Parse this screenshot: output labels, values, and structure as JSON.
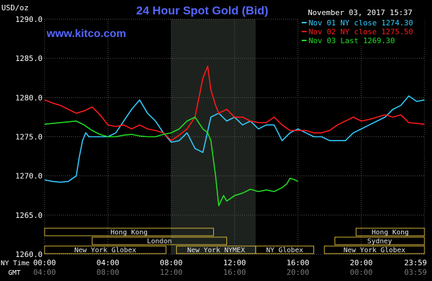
{
  "chart_data": {
    "type": "line",
    "title": "24 Hour Spot Gold (Bid)",
    "watermark": "www.kitco.com",
    "date_label": "November 03, 2017 15:37",
    "ylabel": "USD/oz",
    "ylim": [
      1260.0,
      1290.0
    ],
    "y_ticks": [
      "1290.0",
      "1285.0",
      "1280.0",
      "1275.0",
      "1270.0",
      "1265.0",
      "1260.0"
    ],
    "x_row_labels": {
      "ny": "NY Time",
      "gmt": "GMT"
    },
    "x_ticks_ny": [
      "00:00",
      "04:00",
      "08:00",
      "12:00",
      "16:00",
      "20:00",
      "23:59"
    ],
    "x_ticks_gmt": [
      "04:00",
      "08:00",
      "12:00",
      "16:00",
      "20:00",
      "00:00",
      "03:59"
    ],
    "legend": [
      {
        "label": "Nov 01 NY close 1274.30",
        "color": "#33ccff"
      },
      {
        "label": "Nov 02 NY close 1275.50",
        "color": "#ff1a1a"
      },
      {
        "label": "Nov 03 Last 1269.30",
        "color": "#22dd22"
      }
    ],
    "sessions": [
      {
        "label": "Hong Kong",
        "row": 0,
        "start": 0.0,
        "end": 10.67
      },
      {
        "label": "Hong Kong",
        "row": 0,
        "start": 19.67,
        "end": 23.99
      },
      {
        "label": "London",
        "row": 1,
        "start": 3.0,
        "end": 11.5
      },
      {
        "label": "Sydney",
        "row": 1,
        "start": 18.33,
        "end": 23.99
      },
      {
        "label": "New York Globex",
        "row": 2,
        "start": 0.0,
        "end": 7.67
      },
      {
        "label": "New York NYMEX",
        "row": 2,
        "start": 8.33,
        "end": 13.33
      },
      {
        "label": "NY Globex",
        "row": 2,
        "start": 13.33,
        "end": 17.0
      },
      {
        "label": "New York Globex",
        "row": 2,
        "start": 17.67,
        "end": 23.99
      }
    ],
    "highlight_hours": [
      8.0,
      13.33
    ],
    "series": [
      {
        "color": "#33ccff",
        "x": [
          0,
          0.5,
          1.0,
          1.5,
          2.0,
          2.2,
          2.4,
          2.6,
          2.8,
          3.0,
          3.5,
          4.0,
          4.5,
          5.0,
          5.5,
          6.0,
          6.5,
          7.0,
          7.5,
          8.0,
          8.5,
          9.0,
          9.5,
          10.0,
          10.5,
          11.0,
          11.5,
          12.0,
          12.5,
          13.0,
          13.5,
          14.0,
          14.5,
          15.0,
          15.5,
          16.0,
          16.5,
          17.0,
          17.5,
          18.0,
          18.5,
          19.0,
          19.5,
          20.0,
          20.5,
          21.0,
          21.5,
          22.0,
          22.5,
          23.0,
          23.5,
          23.99
        ],
        "values": [
          1269.5,
          1269.3,
          1269.2,
          1269.3,
          1270.0,
          1272.5,
          1274.5,
          1275.5,
          1275.0,
          1275.0,
          1275.0,
          1275.0,
          1275.5,
          1277.0,
          1278.5,
          1279.7,
          1278.0,
          1277.0,
          1275.5,
          1274.3,
          1274.5,
          1275.5,
          1273.5,
          1273.0,
          1277.5,
          1278.0,
          1277.0,
          1277.5,
          1276.5,
          1277.0,
          1276.0,
          1276.5,
          1276.5,
          1274.5,
          1275.5,
          1276.0,
          1275.5,
          1275.0,
          1275.0,
          1274.5,
          1274.5,
          1274.5,
          1275.5,
          1276.0,
          1276.5,
          1277.0,
          1277.5,
          1278.5,
          1279.0,
          1280.2,
          1279.5,
          1279.7
        ]
      },
      {
        "color": "#ff1a1a",
        "x": [
          0,
          0.5,
          1.0,
          1.5,
          2.0,
          2.5,
          3.0,
          3.5,
          4.0,
          4.5,
          5.0,
          5.5,
          6.0,
          6.5,
          7.0,
          7.5,
          8.0,
          8.5,
          9.0,
          9.5,
          10.0,
          10.3,
          10.5,
          10.8,
          11.0,
          11.5,
          12.0,
          12.5,
          13.0,
          13.5,
          14.0,
          14.5,
          15.0,
          15.5,
          16.0,
          16.5,
          17.0,
          17.5,
          18.0,
          18.5,
          19.0,
          19.5,
          20.0,
          20.5,
          21.0,
          21.5,
          22.0,
          22.5,
          23.0,
          23.5,
          23.99
        ],
        "values": [
          1279.7,
          1279.3,
          1279.0,
          1278.5,
          1278.0,
          1278.3,
          1278.8,
          1277.8,
          1276.5,
          1276.3,
          1276.5,
          1276.0,
          1276.5,
          1276.0,
          1275.8,
          1275.5,
          1274.5,
          1275.2,
          1276.0,
          1277.5,
          1282.5,
          1284.0,
          1281.0,
          1279.0,
          1278.0,
          1278.5,
          1277.5,
          1277.5,
          1277.0,
          1276.8,
          1276.8,
          1277.5,
          1276.5,
          1275.8,
          1275.8,
          1275.8,
          1275.5,
          1275.5,
          1275.8,
          1276.5,
          1277.0,
          1277.5,
          1277.0,
          1277.2,
          1277.5,
          1277.8,
          1277.5,
          1277.8,
          1276.8,
          1276.7,
          1276.6
        ]
      },
      {
        "color": "#22dd22",
        "x": [
          0,
          0.5,
          1.0,
          1.5,
          2.0,
          2.5,
          3.0,
          3.5,
          4.0,
          4.5,
          5.0,
          5.5,
          6.0,
          6.5,
          7.0,
          7.5,
          8.0,
          8.5,
          9.0,
          9.5,
          10.0,
          10.3,
          10.5,
          10.8,
          11.0,
          11.3,
          11.5,
          11.8,
          12.0,
          12.5,
          13.0,
          13.5,
          14.0,
          14.5,
          15.0,
          15.3,
          15.5,
          15.8,
          16.0
        ],
        "values": [
          1276.6,
          1276.7,
          1276.8,
          1276.9,
          1277.0,
          1276.5,
          1275.8,
          1275.3,
          1275.0,
          1275.0,
          1275.2,
          1275.3,
          1275.1,
          1275.0,
          1275.0,
          1275.3,
          1275.5,
          1276.0,
          1277.0,
          1277.5,
          1276.0,
          1275.5,
          1274.5,
          1270.0,
          1266.2,
          1267.5,
          1266.8,
          1267.2,
          1267.5,
          1267.8,
          1268.3,
          1268.0,
          1268.2,
          1268.0,
          1268.5,
          1269.0,
          1269.7,
          1269.5,
          1269.3
        ]
      }
    ]
  }
}
